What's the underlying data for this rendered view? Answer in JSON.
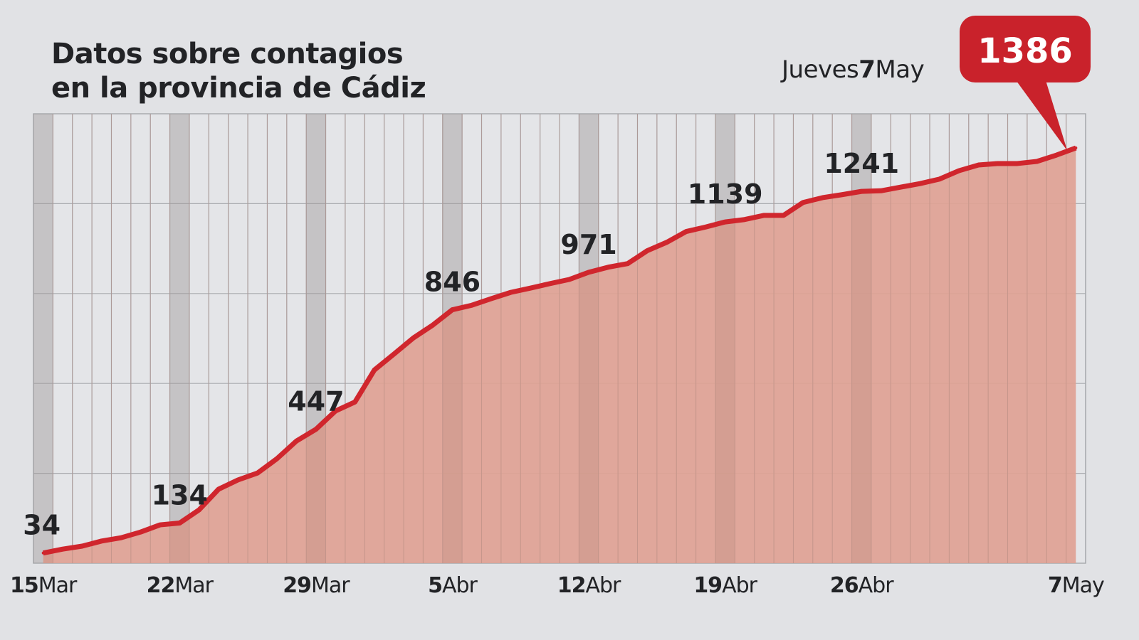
{
  "title_line1": "Datos sobre contagios",
  "title_line2": "en la provincia de Cádiz",
  "date_label": {
    "weekday": "Jueves",
    "day": "7",
    "month": "May"
  },
  "colors": {
    "line": "#d0262d",
    "area": "#e0a294",
    "callout": "#c9222b",
    "background": "#e1e2e5",
    "grid": "#a9abaf",
    "week_band": "#cdd0d3"
  },
  "chart_data": {
    "type": "area",
    "title": "Datos sobre contagios en la provincia de Cádiz",
    "xlabel": "",
    "ylabel": "",
    "x_start": "15 Mar",
    "x_end": "7 May",
    "ylim": [
      0,
      1500
    ],
    "y_gridlines": [
      300,
      600,
      900,
      1200
    ],
    "grid": true,
    "x_ticks": [
      {
        "index": 0,
        "day": "15",
        "month": "Mar"
      },
      {
        "index": 7,
        "day": "22",
        "month": "Mar"
      },
      {
        "index": 14,
        "day": "29",
        "month": "Mar"
      },
      {
        "index": 21,
        "day": "5",
        "month": "Abr"
      },
      {
        "index": 28,
        "day": "12",
        "month": "Abr"
      },
      {
        "index": 35,
        "day": "19",
        "month": "Abr"
      },
      {
        "index": 42,
        "day": "26",
        "month": "Abr"
      },
      {
        "index": 53,
        "day": "7",
        "month": "May"
      }
    ],
    "values": [
      34,
      47,
      57,
      74,
      85,
      104,
      128,
      134,
      178,
      247,
      278,
      301,
      349,
      408,
      447,
      508,
      538,
      645,
      698,
      752,
      795,
      846,
      861,
      883,
      904,
      918,
      933,
      947,
      971,
      988,
      1000,
      1043,
      1071,
      1107,
      1122,
      1139,
      1147,
      1161,
      1161,
      1204,
      1220,
      1230,
      1241,
      1243,
      1255,
      1267,
      1282,
      1310,
      1329,
      1334,
      1334,
      1341,
      1362,
      1386
    ],
    "data_labels": [
      {
        "index": 0,
        "text": "34"
      },
      {
        "index": 7,
        "text": "134"
      },
      {
        "index": 14,
        "text": "447"
      },
      {
        "index": 21,
        "text": "846"
      },
      {
        "index": 28,
        "text": "971"
      },
      {
        "index": 35,
        "text": "1139"
      },
      {
        "index": 42,
        "text": "1241"
      }
    ],
    "callout": {
      "index": 53,
      "text": "1386"
    }
  }
}
